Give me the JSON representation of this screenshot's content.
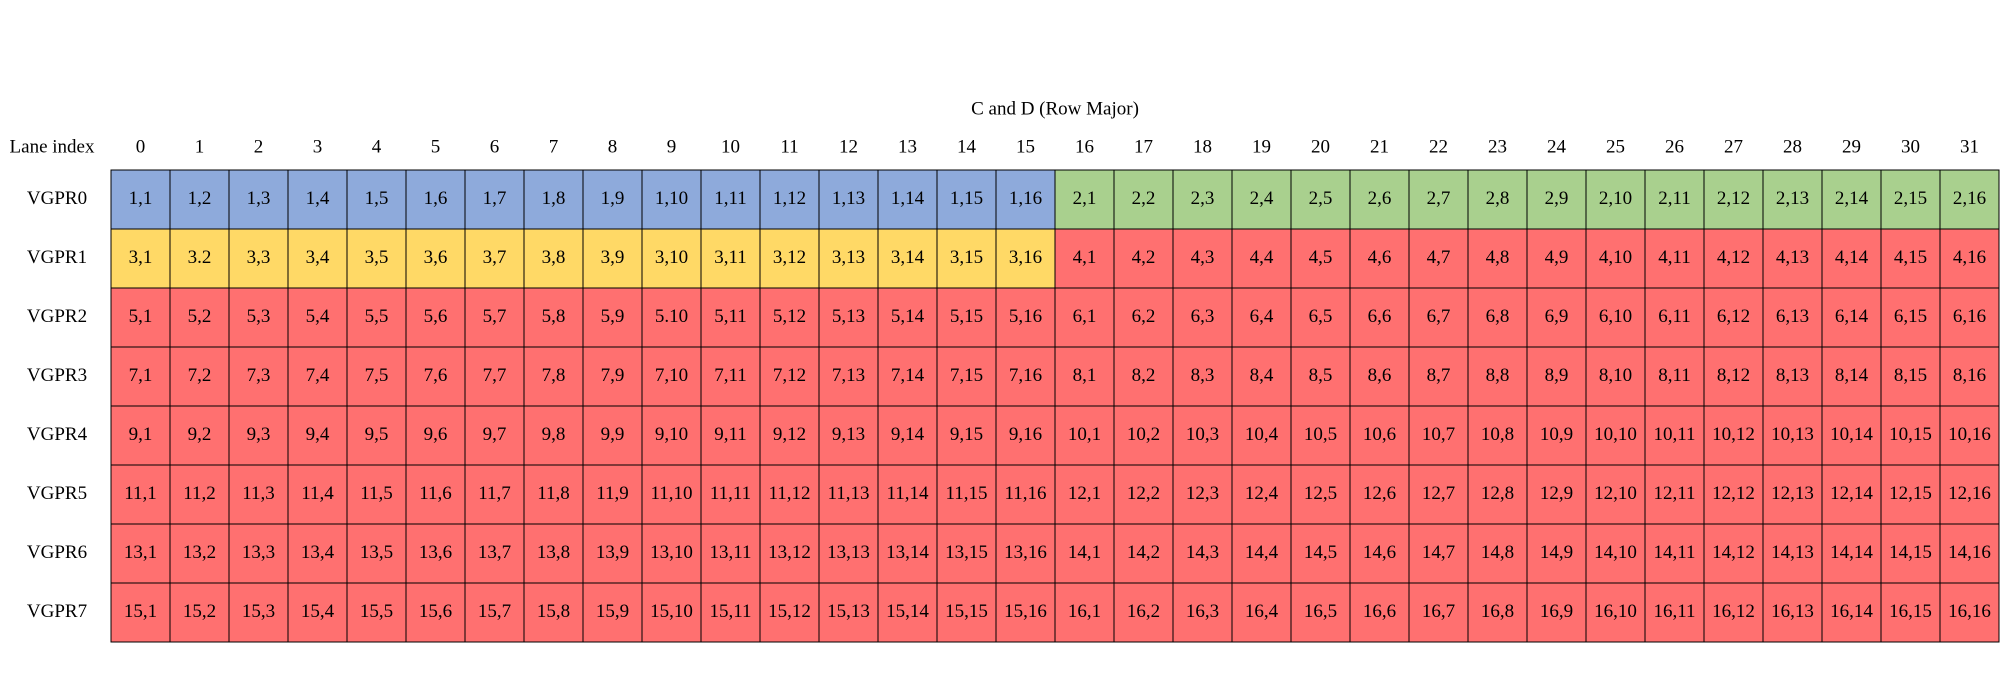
{
  "header": {
    "title": "C and D (Row Major)",
    "lane_label": "Lane index"
  },
  "lanes": [
    "0",
    "1",
    "2",
    "3",
    "4",
    "5",
    "6",
    "7",
    "8",
    "9",
    "10",
    "11",
    "12",
    "13",
    "14",
    "15",
    "16",
    "17",
    "18",
    "19",
    "20",
    "21",
    "22",
    "23",
    "24",
    "25",
    "26",
    "27",
    "28",
    "29",
    "30",
    "31"
  ],
  "rows": [
    {
      "label": "VGPR0",
      "segments": [
        {
          "color": "#8eaadb",
          "cells": [
            "1,1",
            "1,2",
            "1,3",
            "1,4",
            "1,5",
            "1,6",
            "1,7",
            "1,8",
            "1,9",
            "1,10",
            "1,11",
            "1,12",
            "1,13",
            "1,14",
            "1,15",
            "1,16"
          ]
        },
        {
          "color": "#a9d08e",
          "cells": [
            "2,1",
            "2,2",
            "2,3",
            "2,4",
            "2,5",
            "2,6",
            "2,7",
            "2,8",
            "2,9",
            "2,10",
            "2,11",
            "2,12",
            "2,13",
            "2,14",
            "2,15",
            "2,16"
          ]
        }
      ]
    },
    {
      "label": "VGPR1",
      "segments": [
        {
          "color": "#ffd966",
          "cells": [
            "3,1",
            "3.2",
            "3,3",
            "3,4",
            "3,5",
            "3,6",
            "3,7",
            "3,8",
            "3,9",
            "3,10",
            "3,11",
            "3,12",
            "3,13",
            "3,14",
            "3,15",
            "3,16"
          ]
        },
        {
          "color": "#ff7070",
          "cells": [
            "4,1",
            "4,2",
            "4,3",
            "4,4",
            "4,5",
            "4,6",
            "4,7",
            "4,8",
            "4,9",
            "4,10",
            "4,11",
            "4,12",
            "4,13",
            "4,14",
            "4,15",
            "4,16"
          ]
        }
      ]
    },
    {
      "label": "VGPR2",
      "segments": [
        {
          "color": "#ff7070",
          "cells": [
            "5,1",
            "5,2",
            "5,3",
            "5,4",
            "5,5",
            "5,6",
            "5,7",
            "5,8",
            "5,9",
            "5.10",
            "5,11",
            "5,12",
            "5,13",
            "5,14",
            "5,15",
            "5,16",
            "6,1",
            "6,2",
            "6,3",
            "6,4",
            "6,5",
            "6,6",
            "6,7",
            "6,8",
            "6,9",
            "6,10",
            "6,11",
            "6,12",
            "6,13",
            "6,14",
            "6,15",
            "6,16"
          ]
        }
      ]
    },
    {
      "label": "VGPR3",
      "segments": [
        {
          "color": "#ff7070",
          "cells": [
            "7,1",
            "7,2",
            "7,3",
            "7,4",
            "7,5",
            "7,6",
            "7,7",
            "7,8",
            "7,9",
            "7,10",
            "7,11",
            "7,12",
            "7,13",
            "7,14",
            "7,15",
            "7,16",
            "8,1",
            "8,2",
            "8,3",
            "8,4",
            "8,5",
            "8,6",
            "8,7",
            "8,8",
            "8,9",
            "8,10",
            "8,11",
            "8,12",
            "8,13",
            "8,14",
            "8,15",
            "8,16"
          ]
        }
      ]
    },
    {
      "label": "VGPR4",
      "segments": [
        {
          "color": "#ff7070",
          "cells": [
            "9,1",
            "9,2",
            "9,3",
            "9,4",
            "9,5",
            "9,6",
            "9,7",
            "9,8",
            "9,9",
            "9,10",
            "9,11",
            "9,12",
            "9,13",
            "9,14",
            "9,15",
            "9,16",
            "10,1",
            "10,2",
            "10,3",
            "10,4",
            "10,5",
            "10,6",
            "10,7",
            "10,8",
            "10,9",
            "10,10",
            "10,11",
            "10,12",
            "10,13",
            "10,14",
            "10,15",
            "10,16"
          ]
        }
      ]
    },
    {
      "label": "VGPR5",
      "segments": [
        {
          "color": "#ff7070",
          "cells": [
            "11,1",
            "11,2",
            "11,3",
            "11,4",
            "11,5",
            "11,6",
            "11,7",
            "11,8",
            "11,9",
            "11,10",
            "11,11",
            "11,12",
            "11,13",
            "11,14",
            "11,15",
            "11,16",
            "12,1",
            "12,2",
            "12,3",
            "12,4",
            "12,5",
            "12,6",
            "12,7",
            "12,8",
            "12,9",
            "12,10",
            "12,11",
            "12,12",
            "12,13",
            "12,14",
            "12,15",
            "12,16"
          ]
        }
      ]
    },
    {
      "label": "VGPR6",
      "segments": [
        {
          "color": "#ff7070",
          "cells": [
            "13,1",
            "13,2",
            "13,3",
            "13,4",
            "13,5",
            "13,6",
            "13,7",
            "13,8",
            "13,9",
            "13,10",
            "13,11",
            "13,12",
            "13,13",
            "13,14",
            "13,15",
            "13,16",
            "14,1",
            "14,2",
            "14,3",
            "14,4",
            "14,5",
            "14,6",
            "14,7",
            "14,8",
            "14,9",
            "14,10",
            "14,11",
            "14,12",
            "14,13",
            "14,14",
            "14,15",
            "14,16"
          ]
        }
      ]
    },
    {
      "label": "VGPR7",
      "segments": [
        {
          "color": "#ff7070",
          "cells": [
            "15,1",
            "15,2",
            "15,3",
            "15,4",
            "15,5",
            "15,6",
            "15,7",
            "15,8",
            "15,9",
            "15,10",
            "15,11",
            "15,12",
            "15,13",
            "15,14",
            "15,15",
            "15,16",
            "16,1",
            "16,2",
            "16,3",
            "16,4",
            "16,5",
            "16,6",
            "16,7",
            "16,8",
            "16,9",
            "16,10",
            "16,11",
            "16,12",
            "16,13",
            "16,14",
            "16,15",
            "16,16"
          ]
        }
      ]
    }
  ]
}
